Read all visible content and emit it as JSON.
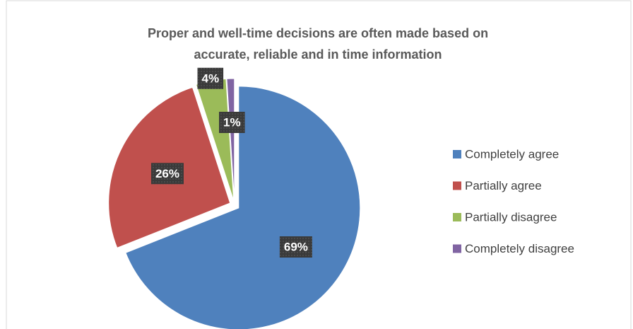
{
  "chart_data": {
    "type": "pie",
    "title": [
      "Proper and well-time decisions are often made based on",
      "accurate, reliable and in time information"
    ],
    "categories": [
      "Completely agree",
      "Partially agree",
      "Partially disagree",
      "Completely disagree"
    ],
    "values": [
      69,
      26,
      4,
      1
    ],
    "value_labels": [
      "69%",
      "26%",
      "4%",
      "1%"
    ],
    "colors": [
      "#4f81bd",
      "#c0504d",
      "#9bbb59",
      "#8064a2"
    ],
    "legend": "right"
  }
}
